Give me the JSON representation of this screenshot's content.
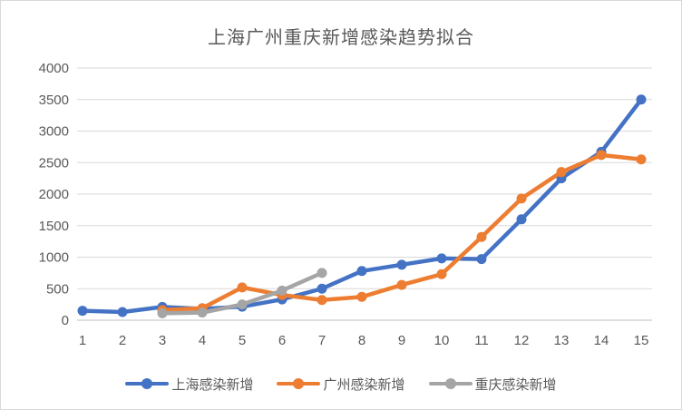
{
  "chart_data": {
    "type": "line",
    "title": "上海广州重庆新增感染趋势拟合",
    "xlabel": "",
    "ylabel": "",
    "x_labels": [
      "1",
      "2",
      "3",
      "4",
      "5",
      "6",
      "7",
      "8",
      "9",
      "10",
      "11",
      "12",
      "13",
      "14",
      "15"
    ],
    "y_axis": {
      "min": 0,
      "max": 4000,
      "step": 500
    },
    "grid": true,
    "legend_position": "bottom",
    "series": [
      {
        "id": "shanghai",
        "name": "上海感染新增",
        "color": "#4472C4",
        "values": [
          150,
          130,
          210,
          180,
          215,
          330,
          500,
          780,
          880,
          980,
          970,
          1600,
          2250,
          2670,
          3500
        ]
      },
      {
        "id": "guangzhou",
        "name": "广州感染新增",
        "color": "#ED7D31",
        "values": [
          null,
          null,
          160,
          190,
          520,
          400,
          320,
          370,
          560,
          730,
          1320,
          1930,
          2350,
          2620,
          2550
        ]
      },
      {
        "id": "chongqing",
        "name": "重庆感染新增",
        "color": "#A5A5A5",
        "values": [
          null,
          null,
          110,
          120,
          250,
          470,
          750,
          null,
          null,
          null,
          null,
          null,
          null,
          null,
          null
        ]
      }
    ],
    "colors": {
      "grid": "#D9D9D9",
      "axis_line": "#BFBFBF",
      "axis_text": "#595959",
      "title_text": "#595959",
      "border": "#D9D9D9",
      "background": "#FFFFFF"
    }
  }
}
